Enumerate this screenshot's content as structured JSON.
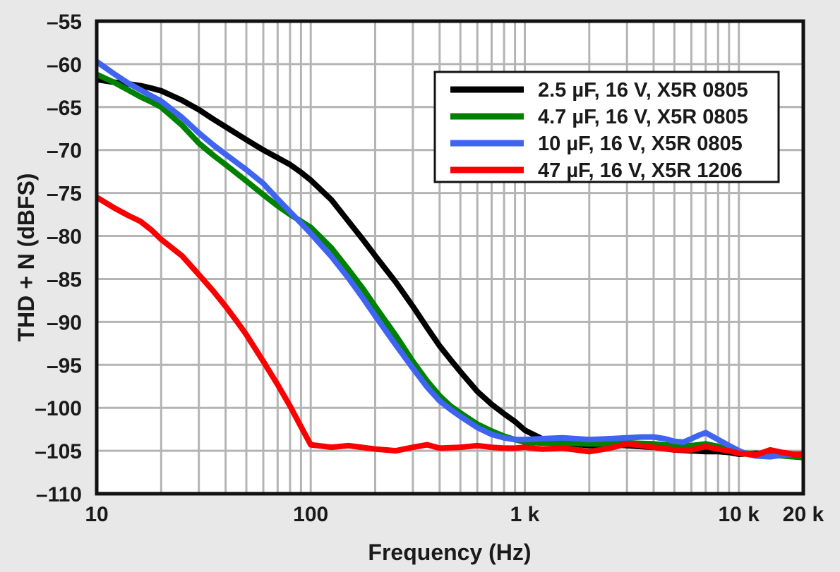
{
  "colors": {
    "background": "#e8e8e8",
    "plot_background": "#ffffff",
    "grid": "#b4b4b4",
    "axis": "#111111",
    "legend_background": "#ffffff",
    "series_black": "#000000",
    "series_green": "#008200",
    "series_blue": "#3e64f1",
    "series_red": "#fb0000"
  },
  "chart_data": {
    "type": "line",
    "title": "",
    "xlabel": "Frequency (Hz)",
    "ylabel": "THD + N (dBFS)",
    "x_scale": "log",
    "xlim": [
      10,
      20000
    ],
    "ylim": [
      -110,
      -55
    ],
    "grid": "on",
    "legend_position": "top-right",
    "x_ticks": [
      {
        "value": 10,
        "label": "10"
      },
      {
        "value": 100,
        "label": "100"
      },
      {
        "value": 1000,
        "label": "1 k"
      },
      {
        "value": 10000,
        "label": "10 k"
      },
      {
        "value": 20000,
        "label": "20 k"
      }
    ],
    "y_ticks": [
      {
        "value": -55,
        "label": "–55"
      },
      {
        "value": -60,
        "label": "–60"
      },
      {
        "value": -65,
        "label": "–65"
      },
      {
        "value": -70,
        "label": "–70"
      },
      {
        "value": -75,
        "label": "–75"
      },
      {
        "value": -80,
        "label": "–80"
      },
      {
        "value": -85,
        "label": "–85"
      },
      {
        "value": -90,
        "label": "–90"
      },
      {
        "value": -95,
        "label": "–95"
      },
      {
        "value": -100,
        "label": "–100"
      },
      {
        "value": -105,
        "label": "–105"
      },
      {
        "value": -110,
        "label": "–110"
      }
    ],
    "series": [
      {
        "name": "2.5 µF, 16 V, X5R 0805",
        "color": "#000000",
        "points": [
          [
            10,
            -61.8
          ],
          [
            12,
            -62.1
          ],
          [
            14,
            -62.3
          ],
          [
            16,
            -62.5
          ],
          [
            18,
            -62.8
          ],
          [
            20,
            -63.1
          ],
          [
            25,
            -64.2
          ],
          [
            30,
            -65.3
          ],
          [
            35,
            -66.4
          ],
          [
            40,
            -67.3
          ],
          [
            50,
            -68.8
          ],
          [
            60,
            -70.0
          ],
          [
            70,
            -70.9
          ],
          [
            80,
            -71.7
          ],
          [
            90,
            -72.6
          ],
          [
            100,
            -73.5
          ],
          [
            125,
            -75.8
          ],
          [
            150,
            -78.3
          ],
          [
            175,
            -80.4
          ],
          [
            200,
            -82.3
          ],
          [
            250,
            -85.4
          ],
          [
            300,
            -88.2
          ],
          [
            350,
            -90.7
          ],
          [
            400,
            -92.8
          ],
          [
            450,
            -94.4
          ],
          [
            500,
            -95.8
          ],
          [
            600,
            -98.1
          ],
          [
            700,
            -99.6
          ],
          [
            800,
            -100.7
          ],
          [
            900,
            -101.6
          ],
          [
            1000,
            -102.6
          ],
          [
            1200,
            -103.6
          ],
          [
            1500,
            -104.1
          ],
          [
            2000,
            -104.4
          ],
          [
            2500,
            -104.3
          ],
          [
            3000,
            -104.4
          ],
          [
            4000,
            -104.6
          ],
          [
            5000,
            -104.9
          ],
          [
            6000,
            -105.0
          ],
          [
            7000,
            -105.1
          ],
          [
            8000,
            -105.1
          ],
          [
            9000,
            -105.2
          ],
          [
            10000,
            -105.4
          ],
          [
            12000,
            -105.3
          ],
          [
            14000,
            -105.4
          ],
          [
            16000,
            -105.5
          ],
          [
            18000,
            -105.6
          ],
          [
            20000,
            -105.8
          ]
        ]
      },
      {
        "name": "4.7 µF, 16 V, X5R 0805",
        "color": "#008200",
        "points": [
          [
            10,
            -61.2
          ],
          [
            12,
            -62.1
          ],
          [
            14,
            -63.0
          ],
          [
            16,
            -63.8
          ],
          [
            18,
            -64.4
          ],
          [
            20,
            -65.0
          ],
          [
            25,
            -67.1
          ],
          [
            30,
            -69.2
          ],
          [
            35,
            -70.6
          ],
          [
            40,
            -71.7
          ],
          [
            50,
            -73.6
          ],
          [
            60,
            -75.2
          ],
          [
            70,
            -76.5
          ],
          [
            80,
            -77.5
          ],
          [
            90,
            -78.3
          ],
          [
            100,
            -79.0
          ],
          [
            125,
            -81.4
          ],
          [
            150,
            -83.9
          ],
          [
            175,
            -86.1
          ],
          [
            200,
            -88.2
          ],
          [
            250,
            -91.6
          ],
          [
            300,
            -94.6
          ],
          [
            350,
            -96.9
          ],
          [
            400,
            -98.6
          ],
          [
            450,
            -99.8
          ],
          [
            500,
            -100.6
          ],
          [
            600,
            -101.9
          ],
          [
            700,
            -102.7
          ],
          [
            800,
            -103.3
          ],
          [
            900,
            -103.7
          ],
          [
            1000,
            -104.0
          ],
          [
            1200,
            -104.1
          ],
          [
            1500,
            -104.1
          ],
          [
            2000,
            -104.2
          ],
          [
            2500,
            -104.2
          ],
          [
            3000,
            -104.1
          ],
          [
            4000,
            -104.2
          ],
          [
            5000,
            -104.4
          ],
          [
            6000,
            -104.4
          ],
          [
            7000,
            -104.2
          ],
          [
            8000,
            -104.5
          ],
          [
            9000,
            -104.9
          ],
          [
            10000,
            -105.2
          ],
          [
            12000,
            -105.4
          ],
          [
            14000,
            -105.5
          ],
          [
            16000,
            -105.6
          ],
          [
            18000,
            -105.7
          ],
          [
            20000,
            -105.8
          ]
        ]
      },
      {
        "name": "10 µF, 16 V, X5R 0805",
        "color": "#3e64f1",
        "points": [
          [
            10,
            -59.7
          ],
          [
            12,
            -61.1
          ],
          [
            14,
            -62.2
          ],
          [
            16,
            -63.0
          ],
          [
            18,
            -63.7
          ],
          [
            20,
            -64.3
          ],
          [
            25,
            -66.2
          ],
          [
            30,
            -68.0
          ],
          [
            35,
            -69.4
          ],
          [
            40,
            -70.5
          ],
          [
            50,
            -72.3
          ],
          [
            60,
            -73.9
          ],
          [
            70,
            -75.7
          ],
          [
            80,
            -77.2
          ],
          [
            90,
            -78.5
          ],
          [
            100,
            -79.7
          ],
          [
            125,
            -82.4
          ],
          [
            150,
            -84.9
          ],
          [
            175,
            -87.2
          ],
          [
            200,
            -89.3
          ],
          [
            250,
            -92.7
          ],
          [
            300,
            -95.4
          ],
          [
            350,
            -97.6
          ],
          [
            400,
            -99.2
          ],
          [
            450,
            -100.2
          ],
          [
            500,
            -101.0
          ],
          [
            600,
            -102.3
          ],
          [
            700,
            -103.1
          ],
          [
            800,
            -103.5
          ],
          [
            900,
            -103.7
          ],
          [
            1000,
            -103.7
          ],
          [
            1200,
            -103.6
          ],
          [
            1500,
            -103.5
          ],
          [
            2000,
            -103.7
          ],
          [
            2500,
            -103.6
          ],
          [
            3000,
            -103.5
          ],
          [
            3500,
            -103.4
          ],
          [
            4000,
            -103.4
          ],
          [
            4500,
            -103.6
          ],
          [
            5000,
            -103.9
          ],
          [
            5500,
            -104.0
          ],
          [
            6000,
            -103.6
          ],
          [
            6500,
            -103.2
          ],
          [
            7000,
            -102.9
          ],
          [
            8000,
            -103.7
          ],
          [
            9000,
            -104.4
          ],
          [
            10000,
            -105.0
          ],
          [
            11000,
            -105.4
          ],
          [
            12000,
            -105.6
          ],
          [
            14000,
            -105.7
          ],
          [
            16000,
            -105.5
          ],
          [
            18000,
            -105.4
          ],
          [
            20000,
            -105.4
          ]
        ]
      },
      {
        "name": "47 µF, 16 V, X5R 1206",
        "color": "#fb0000",
        "points": [
          [
            10,
            -75.5
          ],
          [
            12,
            -76.7
          ],
          [
            14,
            -77.6
          ],
          [
            16,
            -78.3
          ],
          [
            18,
            -79.3
          ],
          [
            20,
            -80.4
          ],
          [
            25,
            -82.3
          ],
          [
            30,
            -84.5
          ],
          [
            35,
            -86.4
          ],
          [
            40,
            -88.2
          ],
          [
            45,
            -89.9
          ],
          [
            50,
            -91.5
          ],
          [
            60,
            -94.6
          ],
          [
            70,
            -97.3
          ],
          [
            80,
            -99.8
          ],
          [
            90,
            -102.2
          ],
          [
            100,
            -104.3
          ],
          [
            125,
            -104.6
          ],
          [
            150,
            -104.4
          ],
          [
            200,
            -104.8
          ],
          [
            250,
            -105.0
          ],
          [
            300,
            -104.6
          ],
          [
            350,
            -104.3
          ],
          [
            400,
            -104.7
          ],
          [
            500,
            -104.6
          ],
          [
            600,
            -104.4
          ],
          [
            700,
            -104.6
          ],
          [
            800,
            -104.7
          ],
          [
            900,
            -104.7
          ],
          [
            1000,
            -104.6
          ],
          [
            1200,
            -104.8
          ],
          [
            1500,
            -104.7
          ],
          [
            2000,
            -105.1
          ],
          [
            2500,
            -104.7
          ],
          [
            3000,
            -104.2
          ],
          [
            3500,
            -104.4
          ],
          [
            4000,
            -104.6
          ],
          [
            5000,
            -104.9
          ],
          [
            6000,
            -104.9
          ],
          [
            7000,
            -104.5
          ],
          [
            8000,
            -104.8
          ],
          [
            9000,
            -105.0
          ],
          [
            10000,
            -105.3
          ],
          [
            12000,
            -105.5
          ],
          [
            14000,
            -104.9
          ],
          [
            16000,
            -105.2
          ],
          [
            18000,
            -105.4
          ],
          [
            20000,
            -105.4
          ]
        ]
      }
    ]
  }
}
